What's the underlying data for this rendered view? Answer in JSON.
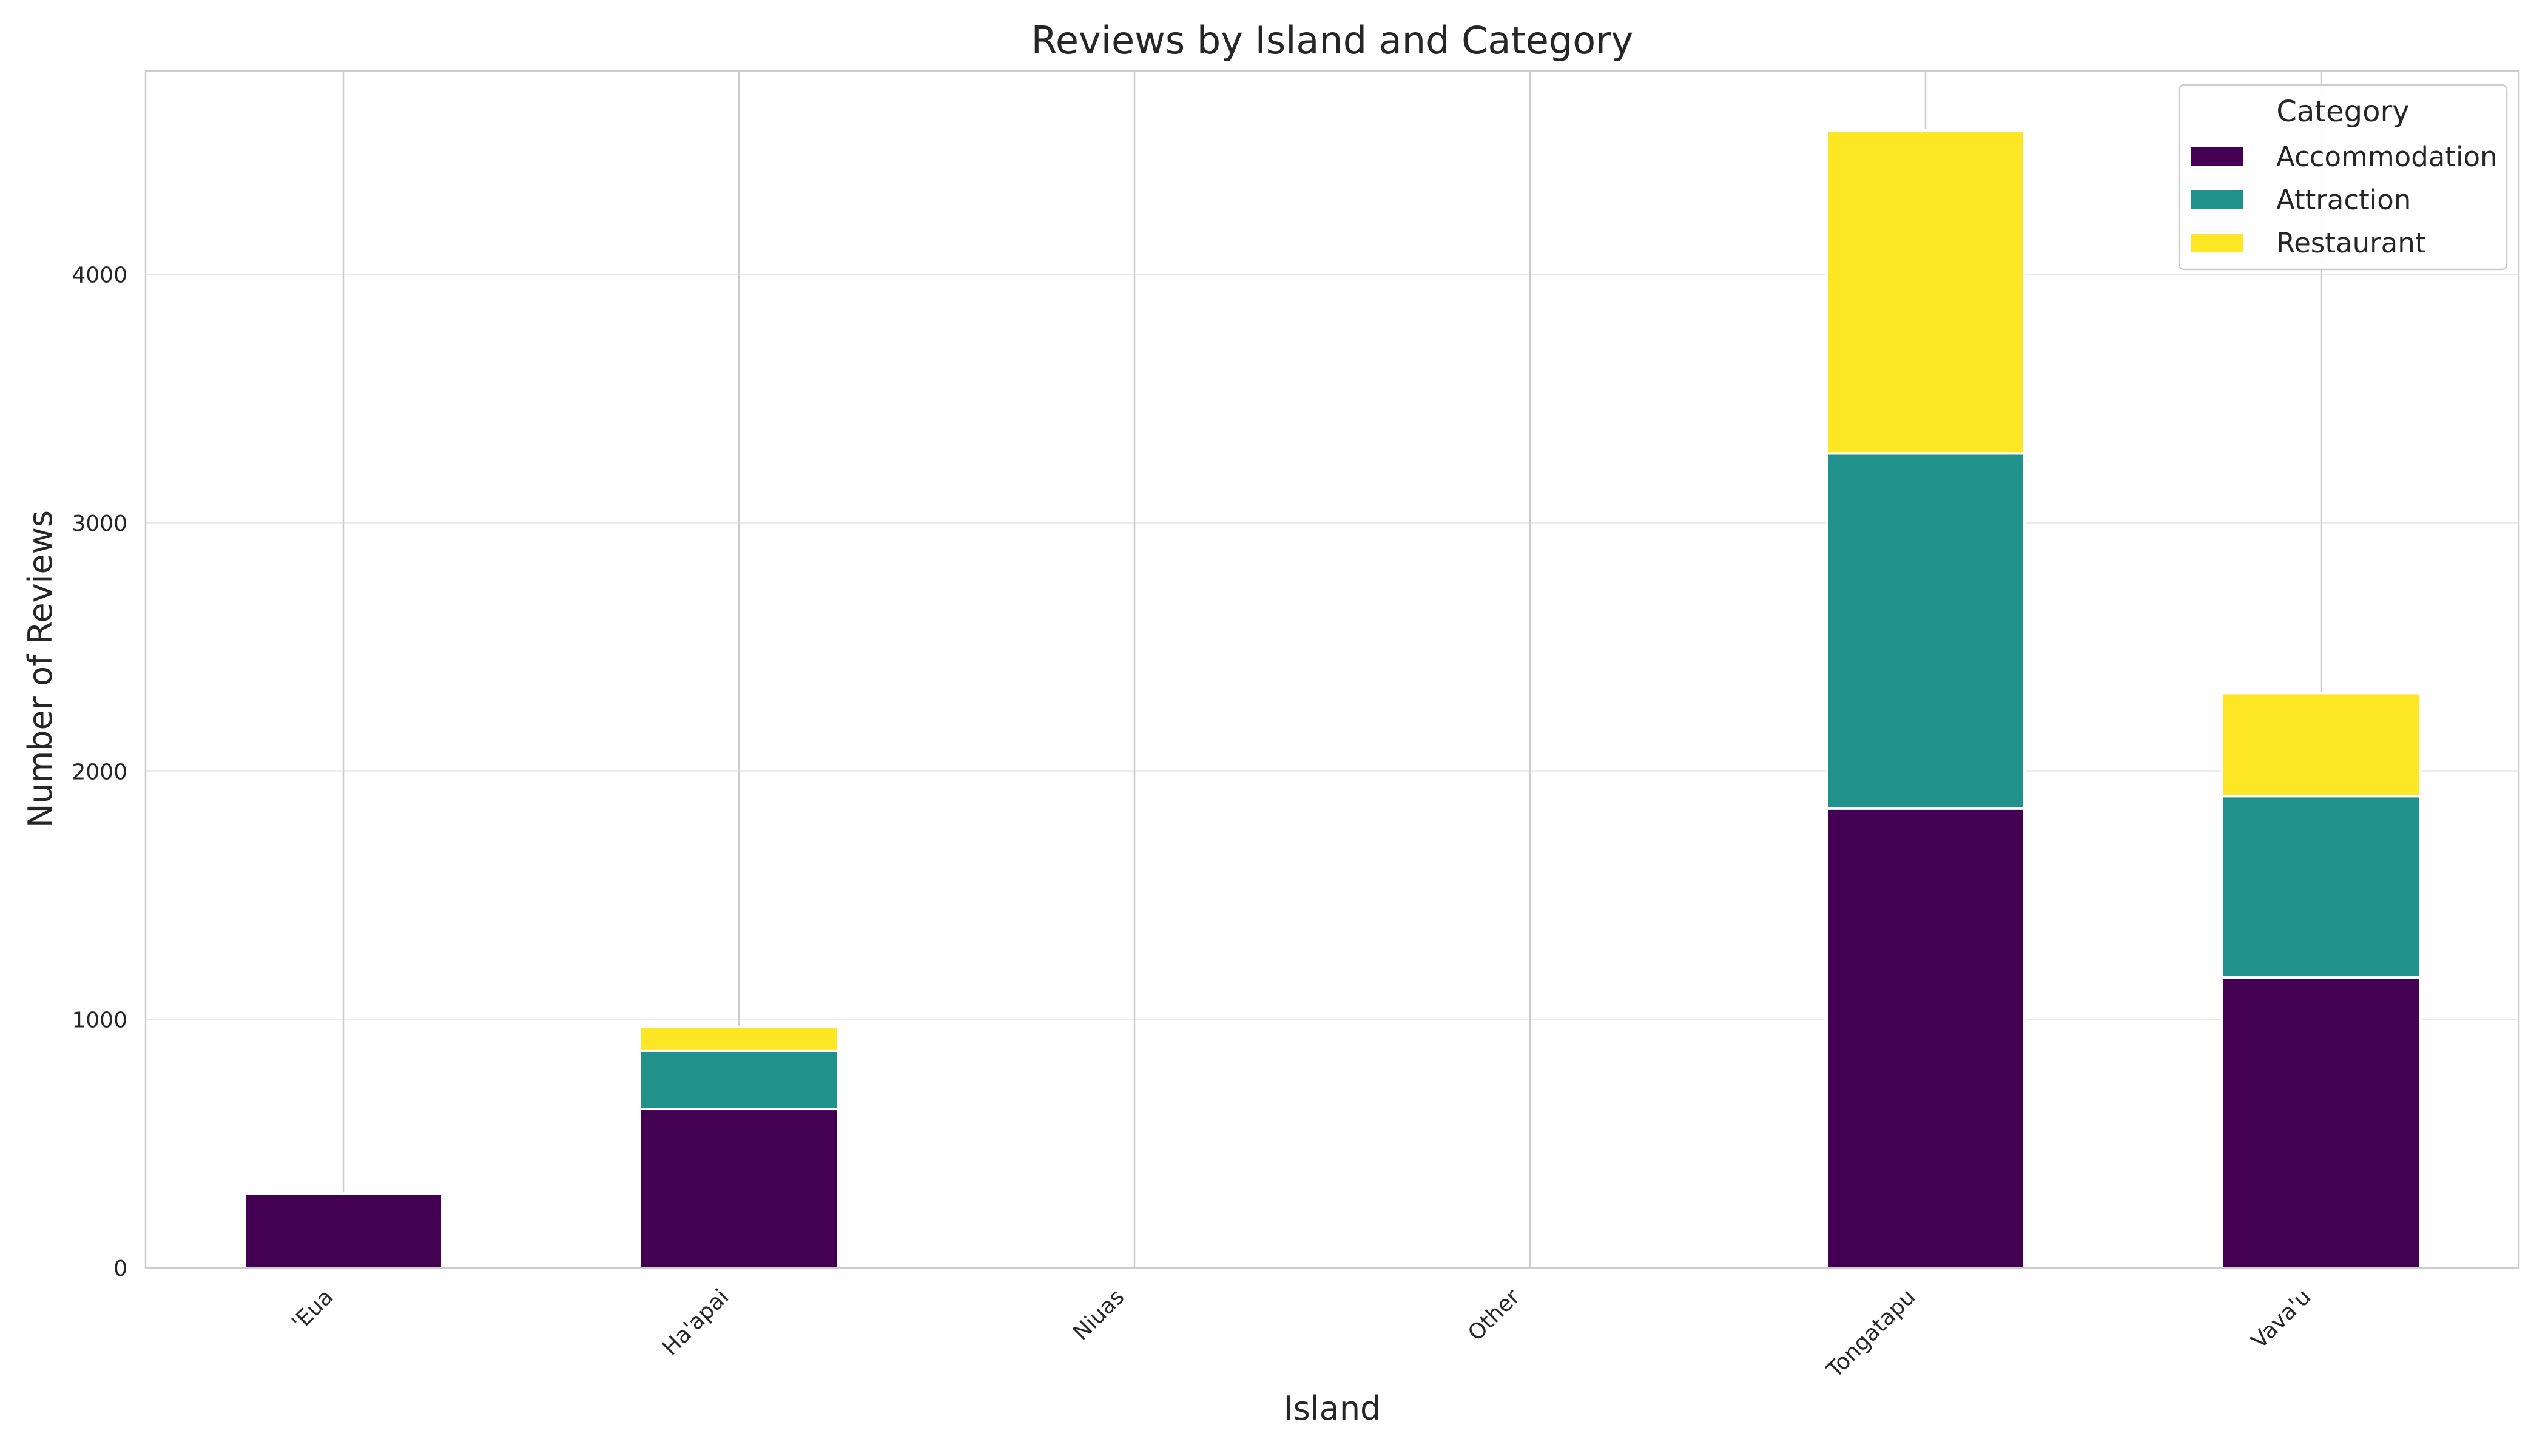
{
  "chart_data": {
    "type": "bar",
    "stacked": true,
    "title": "Reviews by Island and Category",
    "xlabel": "Island",
    "ylabel": "Number of Reviews",
    "categories": [
      "'Eua",
      "Ha'apai",
      "Niuas",
      "Other",
      "Tongatapu",
      "Vava'u"
    ],
    "series": [
      {
        "name": "Accommodation",
        "color": "#440154",
        "values": [
          300,
          640,
          0,
          0,
          1850,
          1170
        ]
      },
      {
        "name": "Attraction",
        "color": "#21918c",
        "values": [
          0,
          235,
          0,
          0,
          1430,
          730
        ]
      },
      {
        "name": "Restaurant",
        "color": "#fde725",
        "values": [
          0,
          95,
          0,
          0,
          1300,
          415
        ]
      }
    ],
    "ylim": [
      0,
      4820
    ],
    "yticks": [
      0,
      1000,
      2000,
      3000,
      4000
    ],
    "grid": true,
    "legend": {
      "title": "Category",
      "position": "top-right"
    }
  }
}
